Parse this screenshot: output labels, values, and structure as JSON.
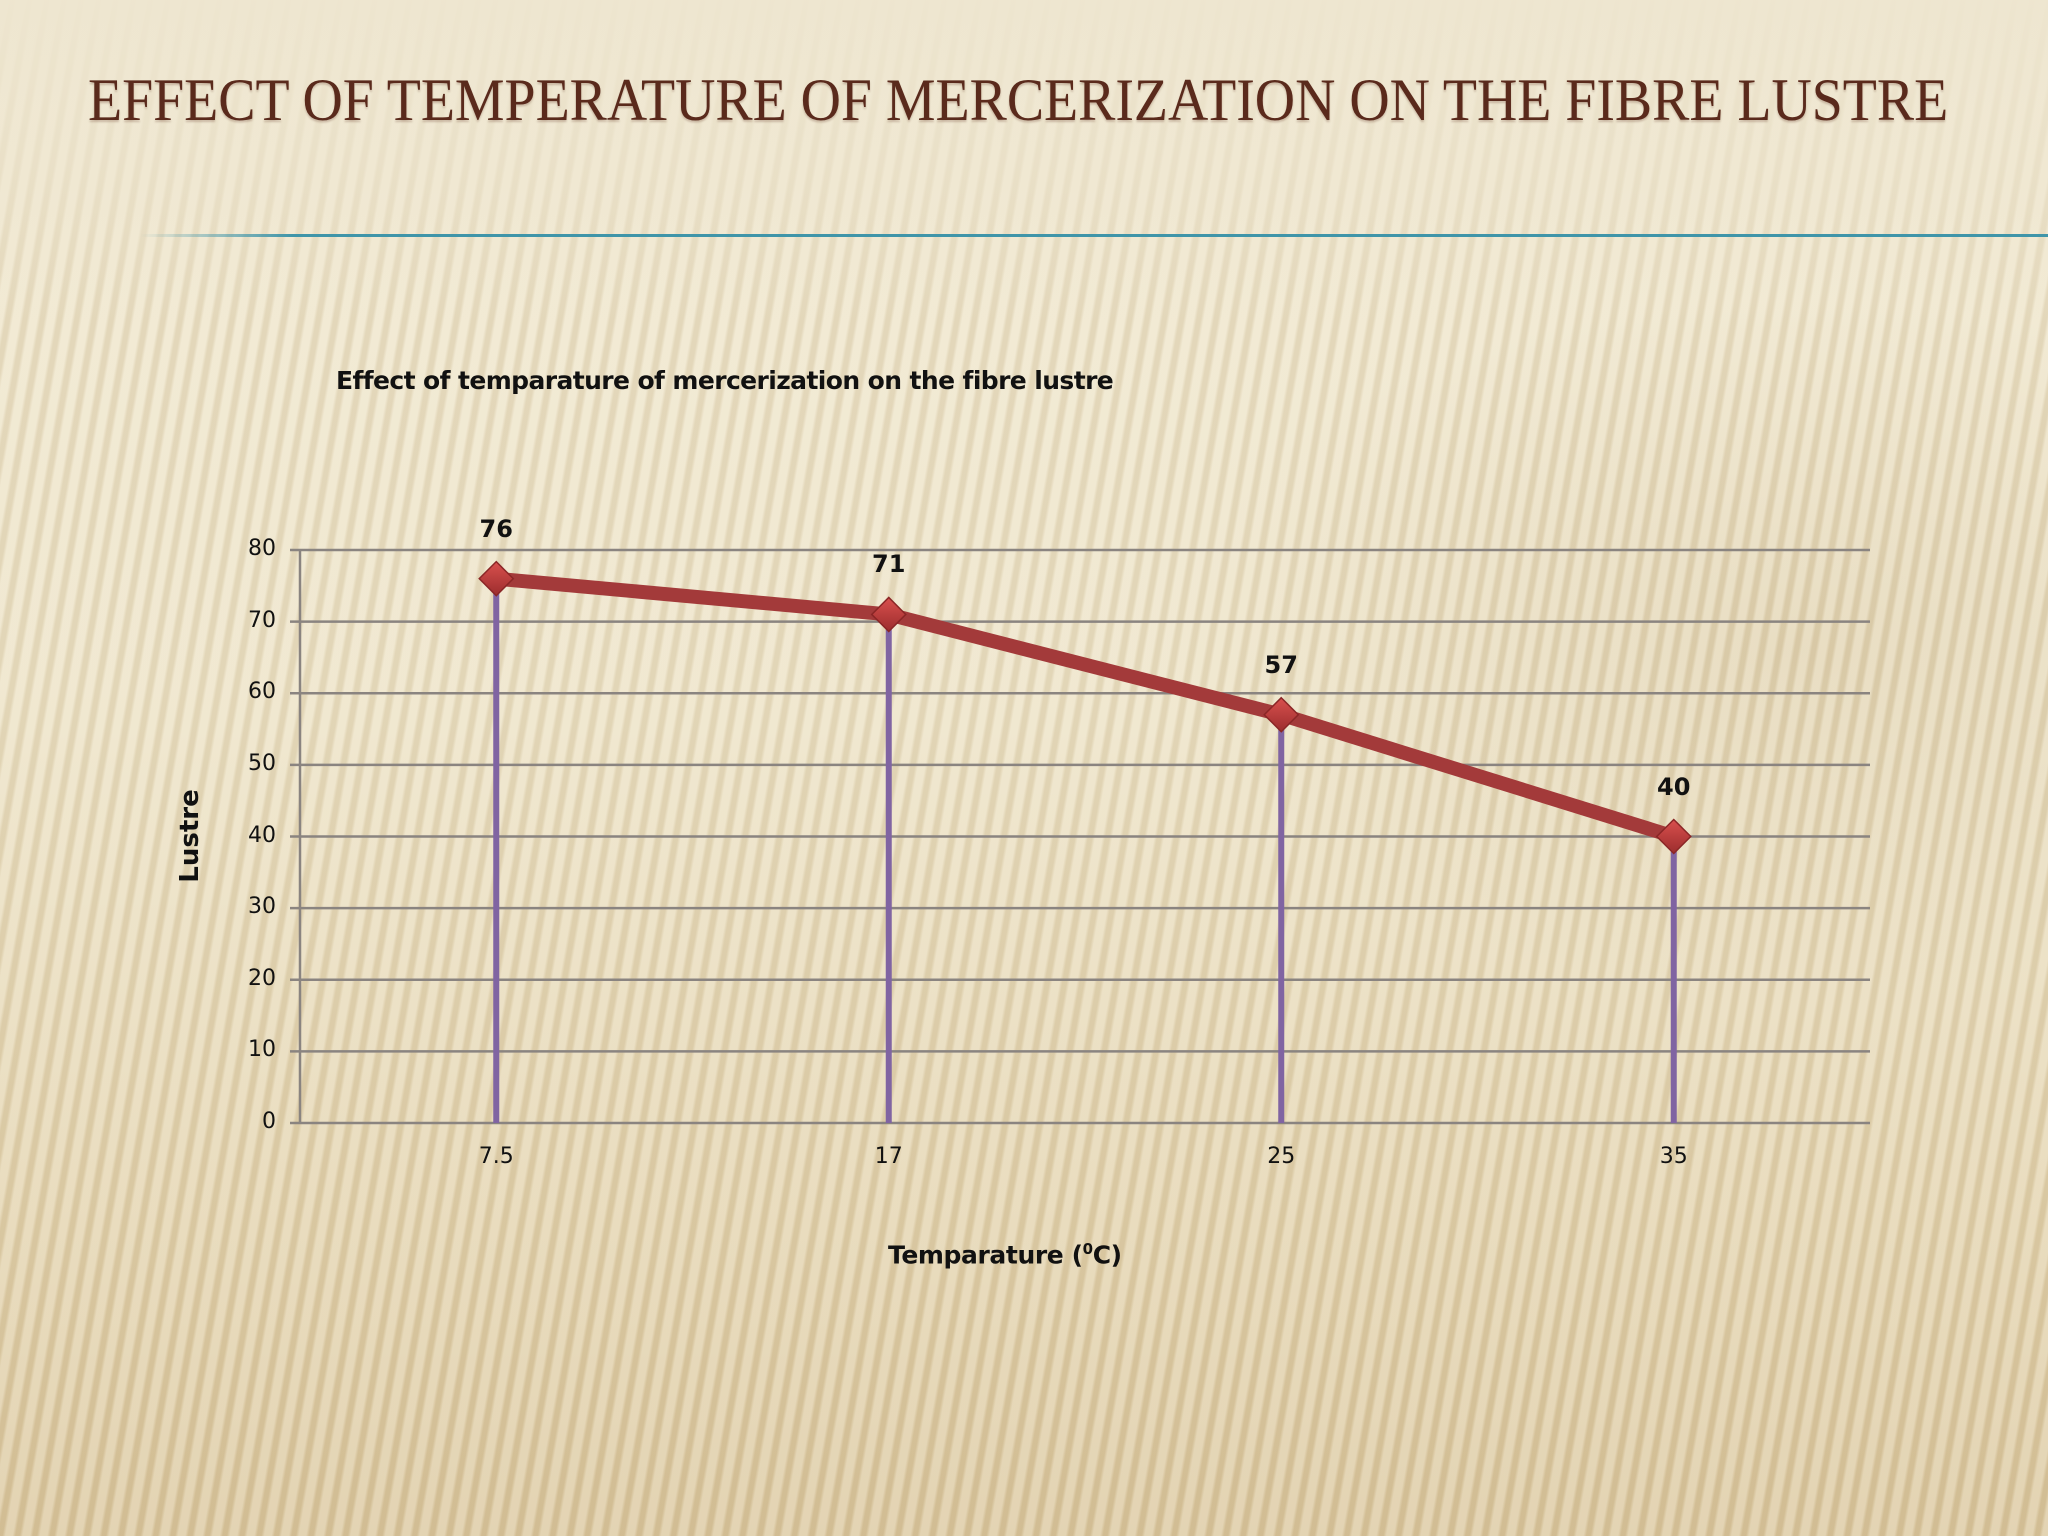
{
  "slide": {
    "title": "EFFECT OF TEMPERATURE OF MERCERIZATION ON THE FIBRE LUSTRE",
    "title_color": "#5a2a1c",
    "rule_color": "#3f95a9"
  },
  "chart": {
    "title": "Effect of temparature of mercerization on the fibre lustre",
    "y_axis_title": "Lustre",
    "x_axis_title_prefix": "Temparature (",
    "x_axis_title_sup": "0",
    "x_axis_title_suffix": "C)",
    "y_ticks": [
      "0",
      "10",
      "20",
      "30",
      "40",
      "50",
      "60",
      "70",
      "80"
    ],
    "x_ticks": [
      "7.5",
      "17",
      "25",
      "35"
    ],
    "data_labels": [
      "76",
      "71",
      "57",
      "40"
    ],
    "line_color": "#a33a3a",
    "drop_line_color": "#8064a2"
  },
  "chart_data": {
    "type": "line",
    "title": "Effect of temparature of mercerization on the fibre lustre",
    "xlabel": "Temparature (0C)",
    "ylabel": "Lustre",
    "categories": [
      "7.5",
      "17",
      "25",
      "35"
    ],
    "series": [
      {
        "name": "Lustre",
        "values": [
          76,
          71,
          57,
          40
        ]
      }
    ],
    "ylim": [
      0,
      80
    ],
    "yticks": [
      0,
      10,
      20,
      30,
      40,
      50,
      60,
      70,
      80
    ],
    "grid": true,
    "drop_lines": true,
    "data_labels": true,
    "legend": "none",
    "marker": "diamond"
  }
}
